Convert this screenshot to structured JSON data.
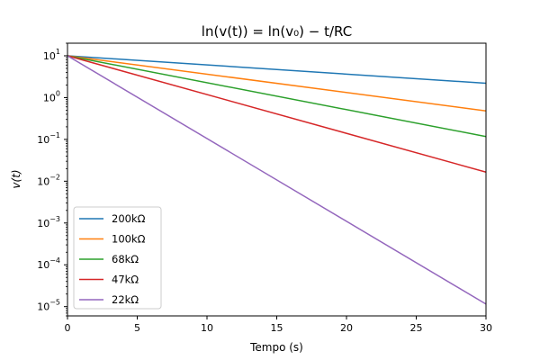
{
  "chart_data": {
    "type": "line",
    "title": "ln(v(t)) = ln(v₀) − t/RC",
    "xlabel": "Tempo (s)",
    "ylabel": "v(t)",
    "xlim": [
      0,
      30
    ],
    "ylim": [
      6e-06,
      20
    ],
    "yscale": "log",
    "grid": false,
    "legend_position": "lower-left",
    "x_ticks": [
      "0",
      "5",
      "10",
      "15",
      "20",
      "25",
      "30"
    ],
    "y_ticks": [
      {
        "base": "10",
        "exp": "1"
      },
      {
        "base": "10",
        "exp": "0"
      },
      {
        "base": "10",
        "exp": "−1"
      },
      {
        "base": "10",
        "exp": "−2"
      },
      {
        "base": "10",
        "exp": "−3"
      },
      {
        "base": "10",
        "exp": "−4"
      },
      {
        "base": "10",
        "exp": "−5"
      }
    ],
    "series": [
      {
        "name": "200kΩ",
        "color": "#1f77b4",
        "x": [
          0,
          30
        ],
        "values": [
          10,
          2.2
        ]
      },
      {
        "name": "100kΩ",
        "color": "#ff7f0e",
        "x": [
          0,
          30
        ],
        "values": [
          10,
          0.48
        ]
      },
      {
        "name": "68kΩ",
        "color": "#2ca02c",
        "x": [
          0,
          30
        ],
        "values": [
          10,
          0.117
        ]
      },
      {
        "name": "47kΩ",
        "color": "#d62728",
        "x": [
          0,
          30
        ],
        "values": [
          10,
          0.0165
        ]
      },
      {
        "name": "22kΩ",
        "color": "#9467bd",
        "x": [
          0,
          30
        ],
        "values": [
          10,
          1.15e-05
        ]
      }
    ]
  }
}
